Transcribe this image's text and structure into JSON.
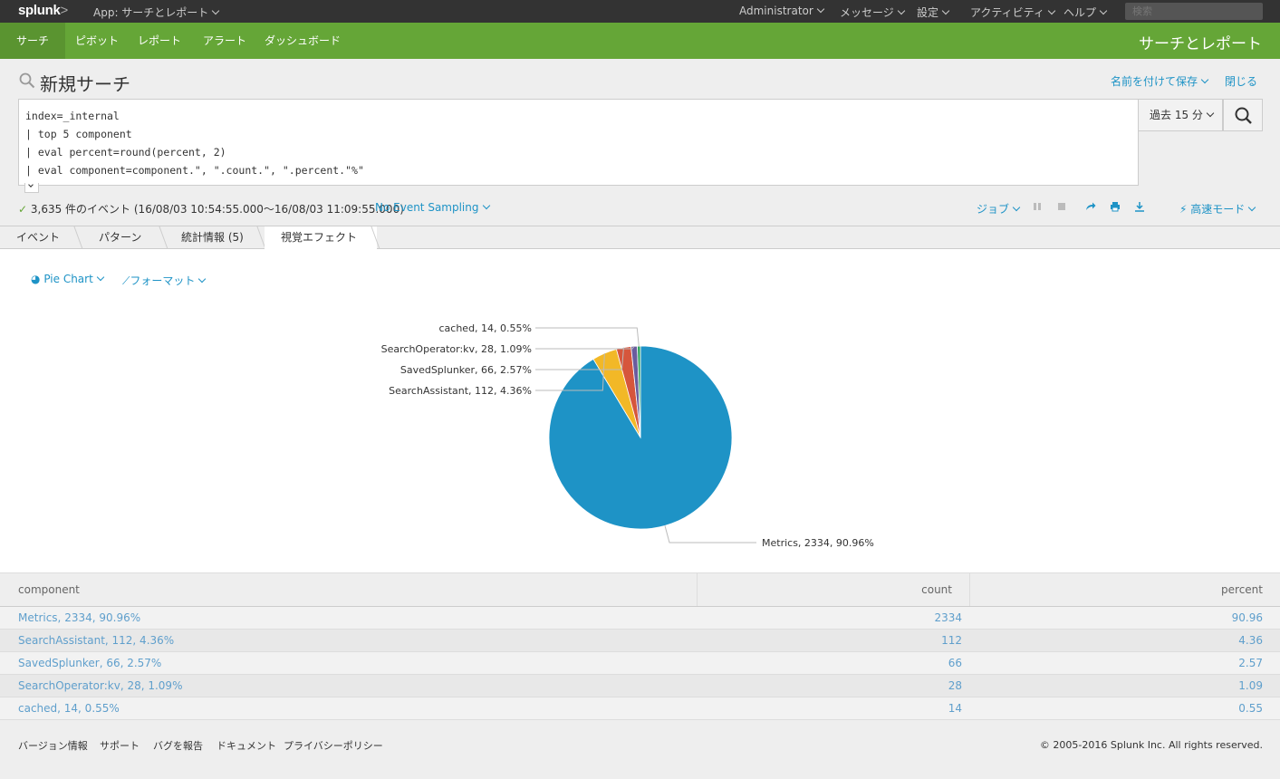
{
  "topbar": {
    "logo": "splunk",
    "logo_suffix": ">",
    "app_menu": "App: サーチとレポート",
    "items": [
      "Administrator",
      "メッセージ",
      "設定",
      "アクティビティ",
      "ヘルプ"
    ],
    "search_placeholder": "検索"
  },
  "appbar": {
    "nav": [
      "サーチ",
      "ピボット",
      "レポート",
      "アラート",
      "ダッシュボード"
    ],
    "active_nav": "サーチ",
    "app_title": "サーチとレポート"
  },
  "header": {
    "title": "新規サーチ",
    "save_as": "名前を付けて保存",
    "close": "閉じる"
  },
  "search": {
    "query_lines": [
      "index=_internal",
      "| top 5 component",
      "| eval percent=round(percent, 2)",
      "| eval component=component.\", \".count.\", \".percent.\"%\""
    ],
    "time_range": "過去 15 分"
  },
  "status": {
    "events_text": "3,635 件のイベント (16/08/03 10:54:55.000〜16/08/03 11:09:55.000)",
    "sampling": "No Event Sampling",
    "job": "ジョブ",
    "mode": "高速モード"
  },
  "tabs": [
    "イベント",
    "パターン",
    "統計情報 (5)",
    "視覚エフェクト"
  ],
  "active_tab": "視覚エフェクト",
  "viz_controls": {
    "chart_type": "Pie Chart",
    "format": "フォーマット"
  },
  "colors": {
    "splunk_green": "#65a637",
    "link_blue": "#1e93c6",
    "pie": [
      "#1e93c6",
      "#f2b827",
      "#d6563c",
      "#6a5c9e",
      "#31a35f"
    ]
  },
  "chart_data": {
    "type": "pie",
    "categories": [
      "Metrics",
      "SearchAssistant",
      "SavedSplunker",
      "SearchOperator:kv",
      "cached"
    ],
    "values": [
      2334,
      112,
      66,
      28,
      14
    ],
    "labels": [
      "Metrics, 2334, 90.96%",
      "SearchAssistant, 112, 4.36%",
      "SavedSplunker, 66, 2.57%",
      "SearchOperator:kv, 28, 1.09%",
      "cached, 14, 0.55%"
    ]
  },
  "table": {
    "columns": [
      "component",
      "count",
      "percent"
    ],
    "rows": [
      [
        "Metrics, 2334, 90.96%",
        "2334",
        "90.96"
      ],
      [
        "SearchAssistant, 112, 4.36%",
        "112",
        "4.36"
      ],
      [
        "SavedSplunker, 66, 2.57%",
        "66",
        "2.57"
      ],
      [
        "SearchOperator:kv, 28, 1.09%",
        "28",
        "1.09"
      ],
      [
        "cached, 14, 0.55%",
        "14",
        "0.55"
      ]
    ]
  },
  "footer": {
    "links": [
      "バージョン情報",
      "サポート",
      "バグを報告",
      "ドキュメント",
      "プライバシーポリシー"
    ],
    "copyright": "© 2005-2016 Splunk Inc. All rights reserved."
  }
}
